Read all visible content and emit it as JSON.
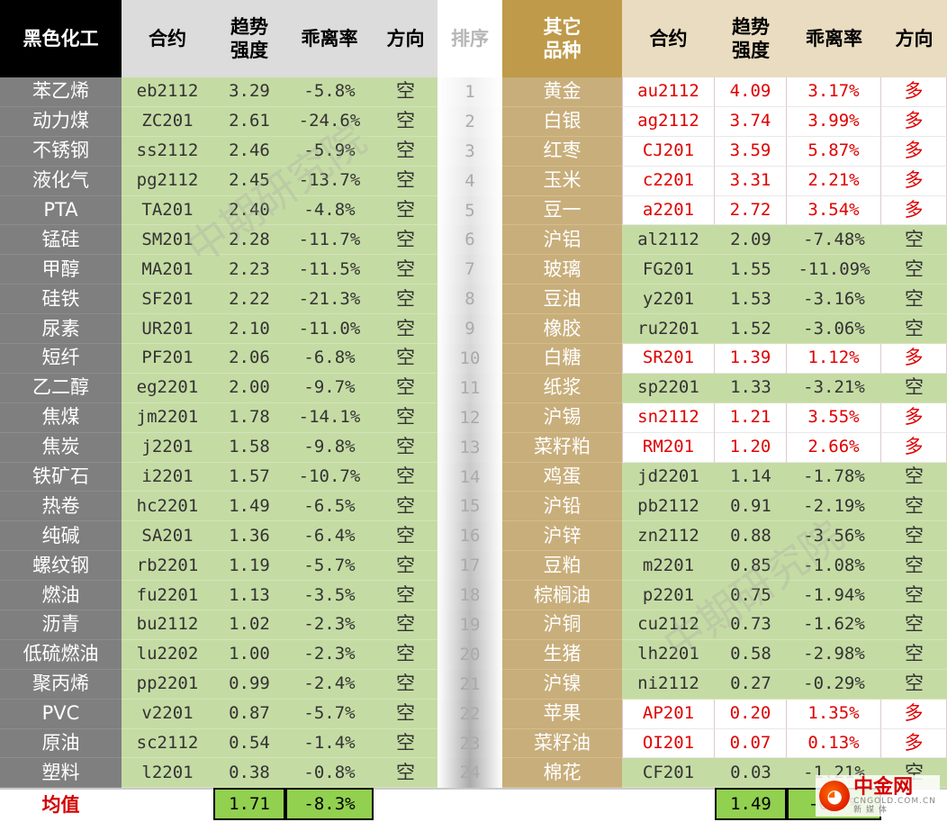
{
  "headers": {
    "left_group": "黑色化工",
    "left_contract": "合约",
    "left_strength": "趋势\n强度",
    "left_deviation": "乖离率",
    "left_direction": "方向",
    "rank": "排序",
    "right_group": "其它\n品种",
    "right_contract": "合约",
    "right_strength": "趋势\n强度",
    "right_deviation": "乖离率",
    "right_direction": "方向"
  },
  "rows": [
    {
      "rank": "1",
      "l_name": "苯乙烯",
      "l_code": "eb2112",
      "l_str": "3.29",
      "l_dev": "-5.8%",
      "l_dir": "空",
      "r_name": "黄金",
      "r_code": "au2112",
      "r_str": "4.09",
      "r_dev": "3.17%",
      "r_dir": "多",
      "r_long": true
    },
    {
      "rank": "2",
      "l_name": "动力煤",
      "l_code": "ZC201",
      "l_str": "2.61",
      "l_dev": "-24.6%",
      "l_dir": "空",
      "r_name": "白银",
      "r_code": "ag2112",
      "r_str": "3.74",
      "r_dev": "3.99%",
      "r_dir": "多",
      "r_long": true
    },
    {
      "rank": "3",
      "l_name": "不锈钢",
      "l_code": "ss2112",
      "l_str": "2.46",
      "l_dev": "-5.9%",
      "l_dir": "空",
      "r_name": "红枣",
      "r_code": "CJ201",
      "r_str": "3.59",
      "r_dev": "5.87%",
      "r_dir": "多",
      "r_long": true
    },
    {
      "rank": "4",
      "l_name": "液化气",
      "l_code": "pg2112",
      "l_str": "2.45",
      "l_dev": "-13.7%",
      "l_dir": "空",
      "r_name": "玉米",
      "r_code": "c2201",
      "r_str": "3.31",
      "r_dev": "2.21%",
      "r_dir": "多",
      "r_long": true
    },
    {
      "rank": "5",
      "l_name": "PTA",
      "l_code": "TA201",
      "l_str": "2.40",
      "l_dev": "-4.8%",
      "l_dir": "空",
      "r_name": "豆一",
      "r_code": "a2201",
      "r_str": "2.72",
      "r_dev": "3.54%",
      "r_dir": "多",
      "r_long": true
    },
    {
      "rank": "6",
      "l_name": "锰硅",
      "l_code": "SM201",
      "l_str": "2.28",
      "l_dev": "-11.7%",
      "l_dir": "空",
      "r_name": "沪铝",
      "r_code": "al2112",
      "r_str": "2.09",
      "r_dev": "-7.48%",
      "r_dir": "空",
      "r_long": false
    },
    {
      "rank": "7",
      "l_name": "甲醇",
      "l_code": "MA201",
      "l_str": "2.23",
      "l_dev": "-11.5%",
      "l_dir": "空",
      "r_name": "玻璃",
      "r_code": "FG201",
      "r_str": "1.55",
      "r_dev": "-11.09%",
      "r_dir": "空",
      "r_long": false
    },
    {
      "rank": "8",
      "l_name": "硅铁",
      "l_code": "SF201",
      "l_str": "2.22",
      "l_dev": "-21.3%",
      "l_dir": "空",
      "r_name": "豆油",
      "r_code": "y2201",
      "r_str": "1.53",
      "r_dev": "-3.16%",
      "r_dir": "空",
      "r_long": false
    },
    {
      "rank": "9",
      "l_name": "尿素",
      "l_code": "UR201",
      "l_str": "2.10",
      "l_dev": "-11.0%",
      "l_dir": "空",
      "r_name": "橡胶",
      "r_code": "ru2201",
      "r_str": "1.52",
      "r_dev": "-3.06%",
      "r_dir": "空",
      "r_long": false
    },
    {
      "rank": "10",
      "l_name": "短纤",
      "l_code": "PF201",
      "l_str": "2.06",
      "l_dev": "-6.8%",
      "l_dir": "空",
      "r_name": "白糖",
      "r_code": "SR201",
      "r_str": "1.39",
      "r_dev": "1.12%",
      "r_dir": "多",
      "r_long": true
    },
    {
      "rank": "11",
      "l_name": "乙二醇",
      "l_code": "eg2201",
      "l_str": "2.00",
      "l_dev": "-9.7%",
      "l_dir": "空",
      "r_name": "纸浆",
      "r_code": "sp2201",
      "r_str": "1.33",
      "r_dev": "-3.21%",
      "r_dir": "空",
      "r_long": false
    },
    {
      "rank": "12",
      "l_name": "焦煤",
      "l_code": "jm2201",
      "l_str": "1.78",
      "l_dev": "-14.1%",
      "l_dir": "空",
      "r_name": "沪锡",
      "r_code": "sn2112",
      "r_str": "1.21",
      "r_dev": "3.55%",
      "r_dir": "多",
      "r_long": true
    },
    {
      "rank": "13",
      "l_name": "焦炭",
      "l_code": "j2201",
      "l_str": "1.58",
      "l_dev": "-9.8%",
      "l_dir": "空",
      "r_name": "菜籽粕",
      "r_code": "RM201",
      "r_str": "1.20",
      "r_dev": "2.66%",
      "r_dir": "多",
      "r_long": true
    },
    {
      "rank": "14",
      "l_name": "铁矿石",
      "l_code": "i2201",
      "l_str": "1.57",
      "l_dev": "-10.7%",
      "l_dir": "空",
      "r_name": "鸡蛋",
      "r_code": "jd2201",
      "r_str": "1.14",
      "r_dev": "-1.78%",
      "r_dir": "空",
      "r_long": false
    },
    {
      "rank": "15",
      "l_name": "热卷",
      "l_code": "hc2201",
      "l_str": "1.49",
      "l_dev": "-6.5%",
      "l_dir": "空",
      "r_name": "沪铅",
      "r_code": "pb2112",
      "r_str": "0.91",
      "r_dev": "-2.19%",
      "r_dir": "空",
      "r_long": false
    },
    {
      "rank": "16",
      "l_name": "纯碱",
      "l_code": "SA201",
      "l_str": "1.36",
      "l_dev": "-6.4%",
      "l_dir": "空",
      "r_name": "沪锌",
      "r_code": "zn2112",
      "r_str": "0.88",
      "r_dev": "-3.56%",
      "r_dir": "空",
      "r_long": false
    },
    {
      "rank": "17",
      "l_name": "螺纹钢",
      "l_code": "rb2201",
      "l_str": "1.19",
      "l_dev": "-5.7%",
      "l_dir": "空",
      "r_name": "豆粕",
      "r_code": "m2201",
      "r_str": "0.85",
      "r_dev": "-1.08%",
      "r_dir": "空",
      "r_long": false
    },
    {
      "rank": "18",
      "l_name": "燃油",
      "l_code": "fu2201",
      "l_str": "1.13",
      "l_dev": "-3.5%",
      "l_dir": "空",
      "r_name": "棕榈油",
      "r_code": "p2201",
      "r_str": "0.75",
      "r_dev": "-1.94%",
      "r_dir": "空",
      "r_long": false
    },
    {
      "rank": "19",
      "l_name": "沥青",
      "l_code": "bu2112",
      "l_str": "1.02",
      "l_dev": "-2.3%",
      "l_dir": "空",
      "r_name": "沪铜",
      "r_code": "cu2112",
      "r_str": "0.73",
      "r_dev": "-1.62%",
      "r_dir": "空",
      "r_long": false
    },
    {
      "rank": "20",
      "l_name": "低硫燃油",
      "l_code": "lu2202",
      "l_str": "1.00",
      "l_dev": "-2.3%",
      "l_dir": "空",
      "r_name": "生猪",
      "r_code": "lh2201",
      "r_str": "0.58",
      "r_dev": "-2.98%",
      "r_dir": "空",
      "r_long": false
    },
    {
      "rank": "21",
      "l_name": "聚丙烯",
      "l_code": "pp2201",
      "l_str": "0.99",
      "l_dev": "-2.4%",
      "l_dir": "空",
      "r_name": "沪镍",
      "r_code": "ni2112",
      "r_str": "0.27",
      "r_dev": "-0.29%",
      "r_dir": "空",
      "r_long": false
    },
    {
      "rank": "22",
      "l_name": "PVC",
      "l_code": "v2201",
      "l_str": "0.87",
      "l_dev": "-5.7%",
      "l_dir": "空",
      "r_name": "苹果",
      "r_code": "AP201",
      "r_str": "0.20",
      "r_dev": "1.35%",
      "r_dir": "多",
      "r_long": true
    },
    {
      "rank": "23",
      "l_name": "原油",
      "l_code": "sc2112",
      "l_str": "0.54",
      "l_dev": "-1.4%",
      "l_dir": "空",
      "r_name": "菜籽油",
      "r_code": "OI201",
      "r_str": "0.07",
      "r_dev": "0.13%",
      "r_dir": "多",
      "r_long": true
    },
    {
      "rank": "24",
      "l_name": "塑料",
      "l_code": "l2201",
      "l_str": "0.38",
      "l_dev": "-0.8%",
      "l_dir": "空",
      "r_name": "棉花",
      "r_code": "CF201",
      "r_str": "0.03",
      "r_dev": "-1.21%",
      "r_dir": "空",
      "r_long": false
    }
  ],
  "footer": {
    "label": "均值",
    "left_avg_strength": "1.71",
    "left_avg_deviation": "-8.3%",
    "right_avg_strength": "1.49",
    "right_avg_deviation": "-0.7%"
  },
  "watermark": "中期研究院",
  "logo": {
    "main": "中金网",
    "sub": "新 媒 体",
    "domain": "CNGOLD.COM.CN",
    "icon_name": "cngold-logo-icon"
  },
  "colors": {
    "long": "#e00000",
    "short_bg": "#c5dba4",
    "avg_bg": "#92d050",
    "gold_header": "#bf9a4a"
  }
}
